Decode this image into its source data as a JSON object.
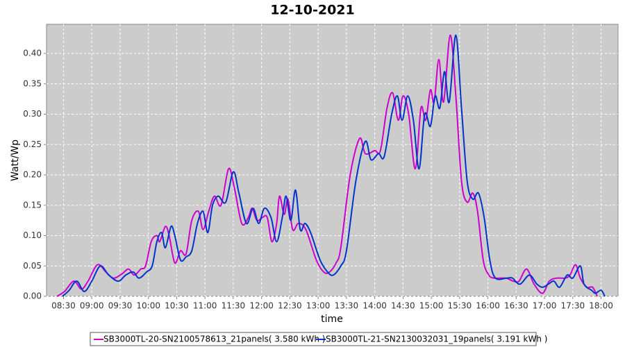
{
  "chart_data": {
    "type": "line",
    "title": "12-10-2021",
    "x_label": "time",
    "y_label": "Watt/Wp",
    "xlim": [
      "08:12",
      "18:18"
    ],
    "xticks": [
      "08:30",
      "09:00",
      "09:30",
      "10:00",
      "10:30",
      "11:00",
      "11:30",
      "12:00",
      "12:30",
      "13:00",
      "13:30",
      "14:00",
      "14:30",
      "15:00",
      "15:30",
      "16:00",
      "16:30",
      "17:00",
      "17:30",
      "18:00"
    ],
    "ylim": [
      0,
      0.448
    ],
    "yticks": [
      {
        "value": 0,
        "label": "0.00"
      },
      {
        "value": 0.05,
        "label": "0.05"
      },
      {
        "value": 0.1,
        "label": "0.10"
      },
      {
        "value": 0.15,
        "label": "0.15"
      },
      {
        "value": 0.2,
        "label": "0.20"
      },
      {
        "value": 0.25,
        "label": "0.25"
      },
      {
        "value": 0.3,
        "label": "0.30"
      },
      {
        "value": 0.35,
        "label": "0.35"
      },
      {
        "value": 0.4,
        "label": "0.40"
      }
    ],
    "grid": true,
    "series": [
      {
        "name": "SB3000TL-20-SN2100578613_21panels( 3.580 kWh )",
        "color": "#cc00cc",
        "x": [
          "08:23",
          "08:31",
          "08:41",
          "08:49",
          "08:56",
          "09:06",
          "09:15",
          "09:23",
          "09:32",
          "09:39",
          "09:45",
          "09:52",
          "09:57",
          "10:03",
          "10:09",
          "10:12",
          "10:18",
          "10:22",
          "10:28",
          "10:34",
          "10:40",
          "10:46",
          "10:53",
          "10:58",
          "11:04",
          "11:10",
          "11:17",
          "11:25",
          "11:31",
          "11:39",
          "11:46",
          "11:50",
          "11:55",
          "12:01",
          "12:06",
          "12:11",
          "12:16",
          "12:19",
          "12:24",
          "12:28",
          "12:33",
          "12:39",
          "12:47",
          "12:58",
          "13:06",
          "13:12",
          "13:19",
          "13:24",
          "13:34",
          "13:44",
          "13:50",
          "14:00",
          "14:06",
          "14:13",
          "14:19",
          "14:25",
          "14:30",
          "14:36",
          "14:43",
          "14:49",
          "14:54",
          "14:59",
          "15:03",
          "15:08",
          "15:13",
          "15:20",
          "15:26",
          "15:32",
          "15:38",
          "15:44",
          "15:49",
          "15:55",
          "16:01",
          "16:07",
          "16:19",
          "16:27",
          "16:33",
          "16:41",
          "16:49",
          "16:58",
          "17:05",
          "17:13",
          "17:22",
          "17:27",
          "17:33",
          "17:38",
          "17:45",
          "17:51",
          "17:56"
        ],
        "values": [
          0,
          0.008,
          0.025,
          0.012,
          0.025,
          0.052,
          0.04,
          0.03,
          0.037,
          0.045,
          0.035,
          0.045,
          0.05,
          0.09,
          0.1,
          0.09,
          0.115,
          0.1,
          0.055,
          0.075,
          0.07,
          0.125,
          0.14,
          0.11,
          0.14,
          0.165,
          0.15,
          0.21,
          0.18,
          0.12,
          0.13,
          0.145,
          0.125,
          0.13,
          0.13,
          0.09,
          0.12,
          0.165,
          0.135,
          0.16,
          0.11,
          0.12,
          0.11,
          0.06,
          0.04,
          0.04,
          0.055,
          0.08,
          0.2,
          0.26,
          0.235,
          0.24,
          0.24,
          0.31,
          0.335,
          0.29,
          0.33,
          0.3,
          0.21,
          0.31,
          0.29,
          0.34,
          0.32,
          0.39,
          0.32,
          0.43,
          0.33,
          0.19,
          0.155,
          0.17,
          0.14,
          0.06,
          0.035,
          0.03,
          0.03,
          0.025,
          0.025,
          0.045,
          0.02,
          0.005,
          0.025,
          0.03,
          0.03,
          0.035,
          0.052,
          0.03,
          0.015,
          0.015,
          0
        ]
      },
      {
        "name": "SB3000TL-21-SN2130032031_19panels( 3.191 kWh )",
        "color": "#0033cc",
        "x": [
          "08:29",
          "08:36",
          "08:44",
          "08:52",
          "09:00",
          "09:09",
          "09:18",
          "09:28",
          "09:36",
          "09:44",
          "09:50",
          "09:58",
          "10:04",
          "10:09",
          "10:14",
          "10:18",
          "10:24",
          "10:28",
          "10:34",
          "10:40",
          "10:46",
          "10:52",
          "10:58",
          "11:03",
          "11:08",
          "11:14",
          "11:22",
          "11:30",
          "11:36",
          "11:44",
          "11:51",
          "11:57",
          "12:03",
          "12:10",
          "12:16",
          "12:22",
          "12:26",
          "12:31",
          "12:36",
          "12:41",
          "12:46",
          "12:52",
          "13:02",
          "13:10",
          "13:16",
          "13:24",
          "13:30",
          "13:40",
          "13:50",
          "13:56",
          "14:04",
          "14:10",
          "14:18",
          "14:24",
          "14:29",
          "14:35",
          "14:41",
          "14:47",
          "14:53",
          "14:59",
          "15:04",
          "15:09",
          "15:14",
          "15:19",
          "15:26",
          "15:32",
          "15:38",
          "15:44",
          "15:50",
          "15:56",
          "16:02",
          "16:08",
          "16:20",
          "16:26",
          "16:34",
          "16:44",
          "16:52",
          "16:58",
          "17:04",
          "17:10",
          "17:16",
          "17:24",
          "17:30",
          "17:38",
          "17:42",
          "17:50",
          "17:54",
          "18:00",
          "18:04"
        ],
        "values": [
          0,
          0.01,
          0.025,
          0.008,
          0.025,
          0.05,
          0.035,
          0.025,
          0.035,
          0.04,
          0.03,
          0.04,
          0.05,
          0.09,
          0.105,
          0.08,
          0.115,
          0.1,
          0.06,
          0.065,
          0.075,
          0.12,
          0.14,
          0.105,
          0.15,
          0.165,
          0.155,
          0.205,
          0.17,
          0.12,
          0.145,
          0.12,
          0.145,
          0.13,
          0.09,
          0.13,
          0.165,
          0.125,
          0.175,
          0.11,
          0.12,
          0.105,
          0.06,
          0.04,
          0.035,
          0.05,
          0.075,
          0.19,
          0.255,
          0.225,
          0.235,
          0.23,
          0.3,
          0.33,
          0.29,
          0.33,
          0.29,
          0.21,
          0.3,
          0.28,
          0.33,
          0.31,
          0.37,
          0.32,
          0.43,
          0.31,
          0.19,
          0.16,
          0.17,
          0.13,
          0.06,
          0.03,
          0.03,
          0.03,
          0.02,
          0.035,
          0.02,
          0.015,
          0.02,
          0.025,
          0.015,
          0.035,
          0.03,
          0.05,
          0.02,
          0.01,
          0.005,
          0.01,
          0
        ]
      }
    ]
  }
}
